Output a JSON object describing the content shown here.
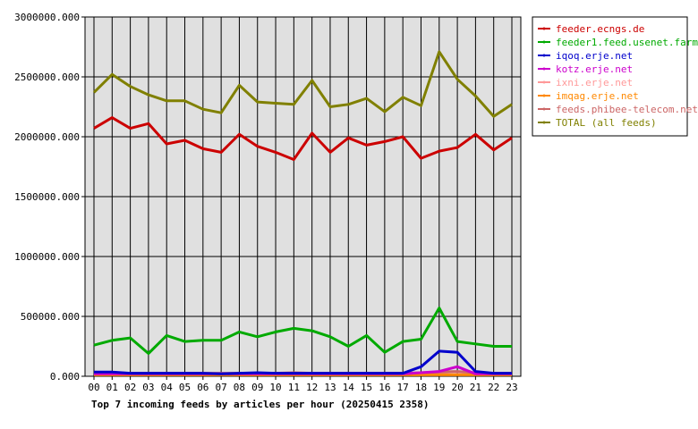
{
  "chart_data": {
    "type": "line",
    "title": "Top 7 incoming feeds by articles per hour (20250415 2358)",
    "xlabel": "",
    "ylabel": "",
    "ylim": [
      0,
      3000000
    ],
    "yticks": [
      0,
      500000,
      1000000,
      1500000,
      2000000,
      2500000,
      3000000
    ],
    "ytick_labels": [
      "0.000",
      "500000.000",
      "1000000.000",
      "1500000.000",
      "2000000.000",
      "2500000.000",
      "3000000.000"
    ],
    "grid": true,
    "legend_position": "right",
    "plot_background": "#e0e0e0",
    "categories": [
      "00",
      "01",
      "02",
      "03",
      "04",
      "05",
      "06",
      "07",
      "08",
      "09",
      "10",
      "11",
      "12",
      "13",
      "14",
      "15",
      "16",
      "17",
      "18",
      "19",
      "20",
      "21",
      "22",
      "23"
    ],
    "series": [
      {
        "name": "feeder.ecngs.de",
        "color": "#cc0000",
        "values": [
          2070000,
          2160000,
          2070000,
          2110000,
          1940000,
          1970000,
          1900000,
          1870000,
          2020000,
          1920000,
          1870000,
          1810000,
          2030000,
          1870000,
          1990000,
          1930000,
          1960000,
          2000000,
          1820000,
          1880000,
          1910000,
          2020000,
          1890000,
          1990000
        ]
      },
      {
        "name": "feeder1.feed.usenet.farm",
        "color": "#00aa00",
        "values": [
          260000,
          300000,
          320000,
          190000,
          340000,
          290000,
          300000,
          300000,
          370000,
          330000,
          370000,
          400000,
          380000,
          330000,
          250000,
          340000,
          200000,
          290000,
          310000,
          570000,
          290000,
          270000,
          250000,
          250000
        ]
      },
      {
        "name": "iqoq.erje.net",
        "color": "#0000cc",
        "values": [
          35000,
          35000,
          25000,
          25000,
          25000,
          25000,
          25000,
          20000,
          25000,
          30000,
          25000,
          25000,
          25000,
          25000,
          25000,
          25000,
          25000,
          25000,
          80000,
          210000,
          200000,
          40000,
          25000,
          25000
        ]
      },
      {
        "name": "kotz.erje.net",
        "color": "#cc00cc",
        "values": [
          20000,
          20000,
          20000,
          20000,
          20000,
          20000,
          20000,
          20000,
          20000,
          20000,
          20000,
          20000,
          20000,
          20000,
          20000,
          20000,
          20000,
          20000,
          30000,
          40000,
          80000,
          20000,
          20000,
          20000
        ]
      },
      {
        "name": "ixni.erje.net",
        "color": "#ff9999",
        "values": [
          15000,
          15000,
          15000,
          15000,
          15000,
          15000,
          15000,
          15000,
          15000,
          15000,
          15000,
          15000,
          15000,
          15000,
          15000,
          15000,
          15000,
          15000,
          15000,
          15000,
          15000,
          15000,
          15000,
          15000
        ]
      },
      {
        "name": "imqag.erje.net",
        "color": "#ff8800",
        "values": [
          12000,
          12000,
          12000,
          12000,
          12000,
          12000,
          12000,
          12000,
          12000,
          12000,
          12000,
          12000,
          12000,
          12000,
          12000,
          12000,
          12000,
          12000,
          12000,
          12000,
          12000,
          12000,
          12000,
          12000
        ]
      },
      {
        "name": "feeds.phibee-telecom.net",
        "color": "#cc6666",
        "values": [
          25000,
          30000,
          25000,
          25000,
          25000,
          25000,
          25000,
          25000,
          25000,
          25000,
          25000,
          30000,
          25000,
          25000,
          25000,
          25000,
          25000,
          25000,
          30000,
          35000,
          40000,
          30000,
          25000,
          25000
        ]
      },
      {
        "name": "TOTAL (all feeds)",
        "color": "#808000",
        "values": [
          2370000,
          2520000,
          2420000,
          2350000,
          2300000,
          2300000,
          2230000,
          2200000,
          2430000,
          2290000,
          2280000,
          2270000,
          2470000,
          2250000,
          2270000,
          2320000,
          2210000,
          2330000,
          2260000,
          2710000,
          2480000,
          2340000,
          2170000,
          2270000
        ]
      }
    ]
  }
}
